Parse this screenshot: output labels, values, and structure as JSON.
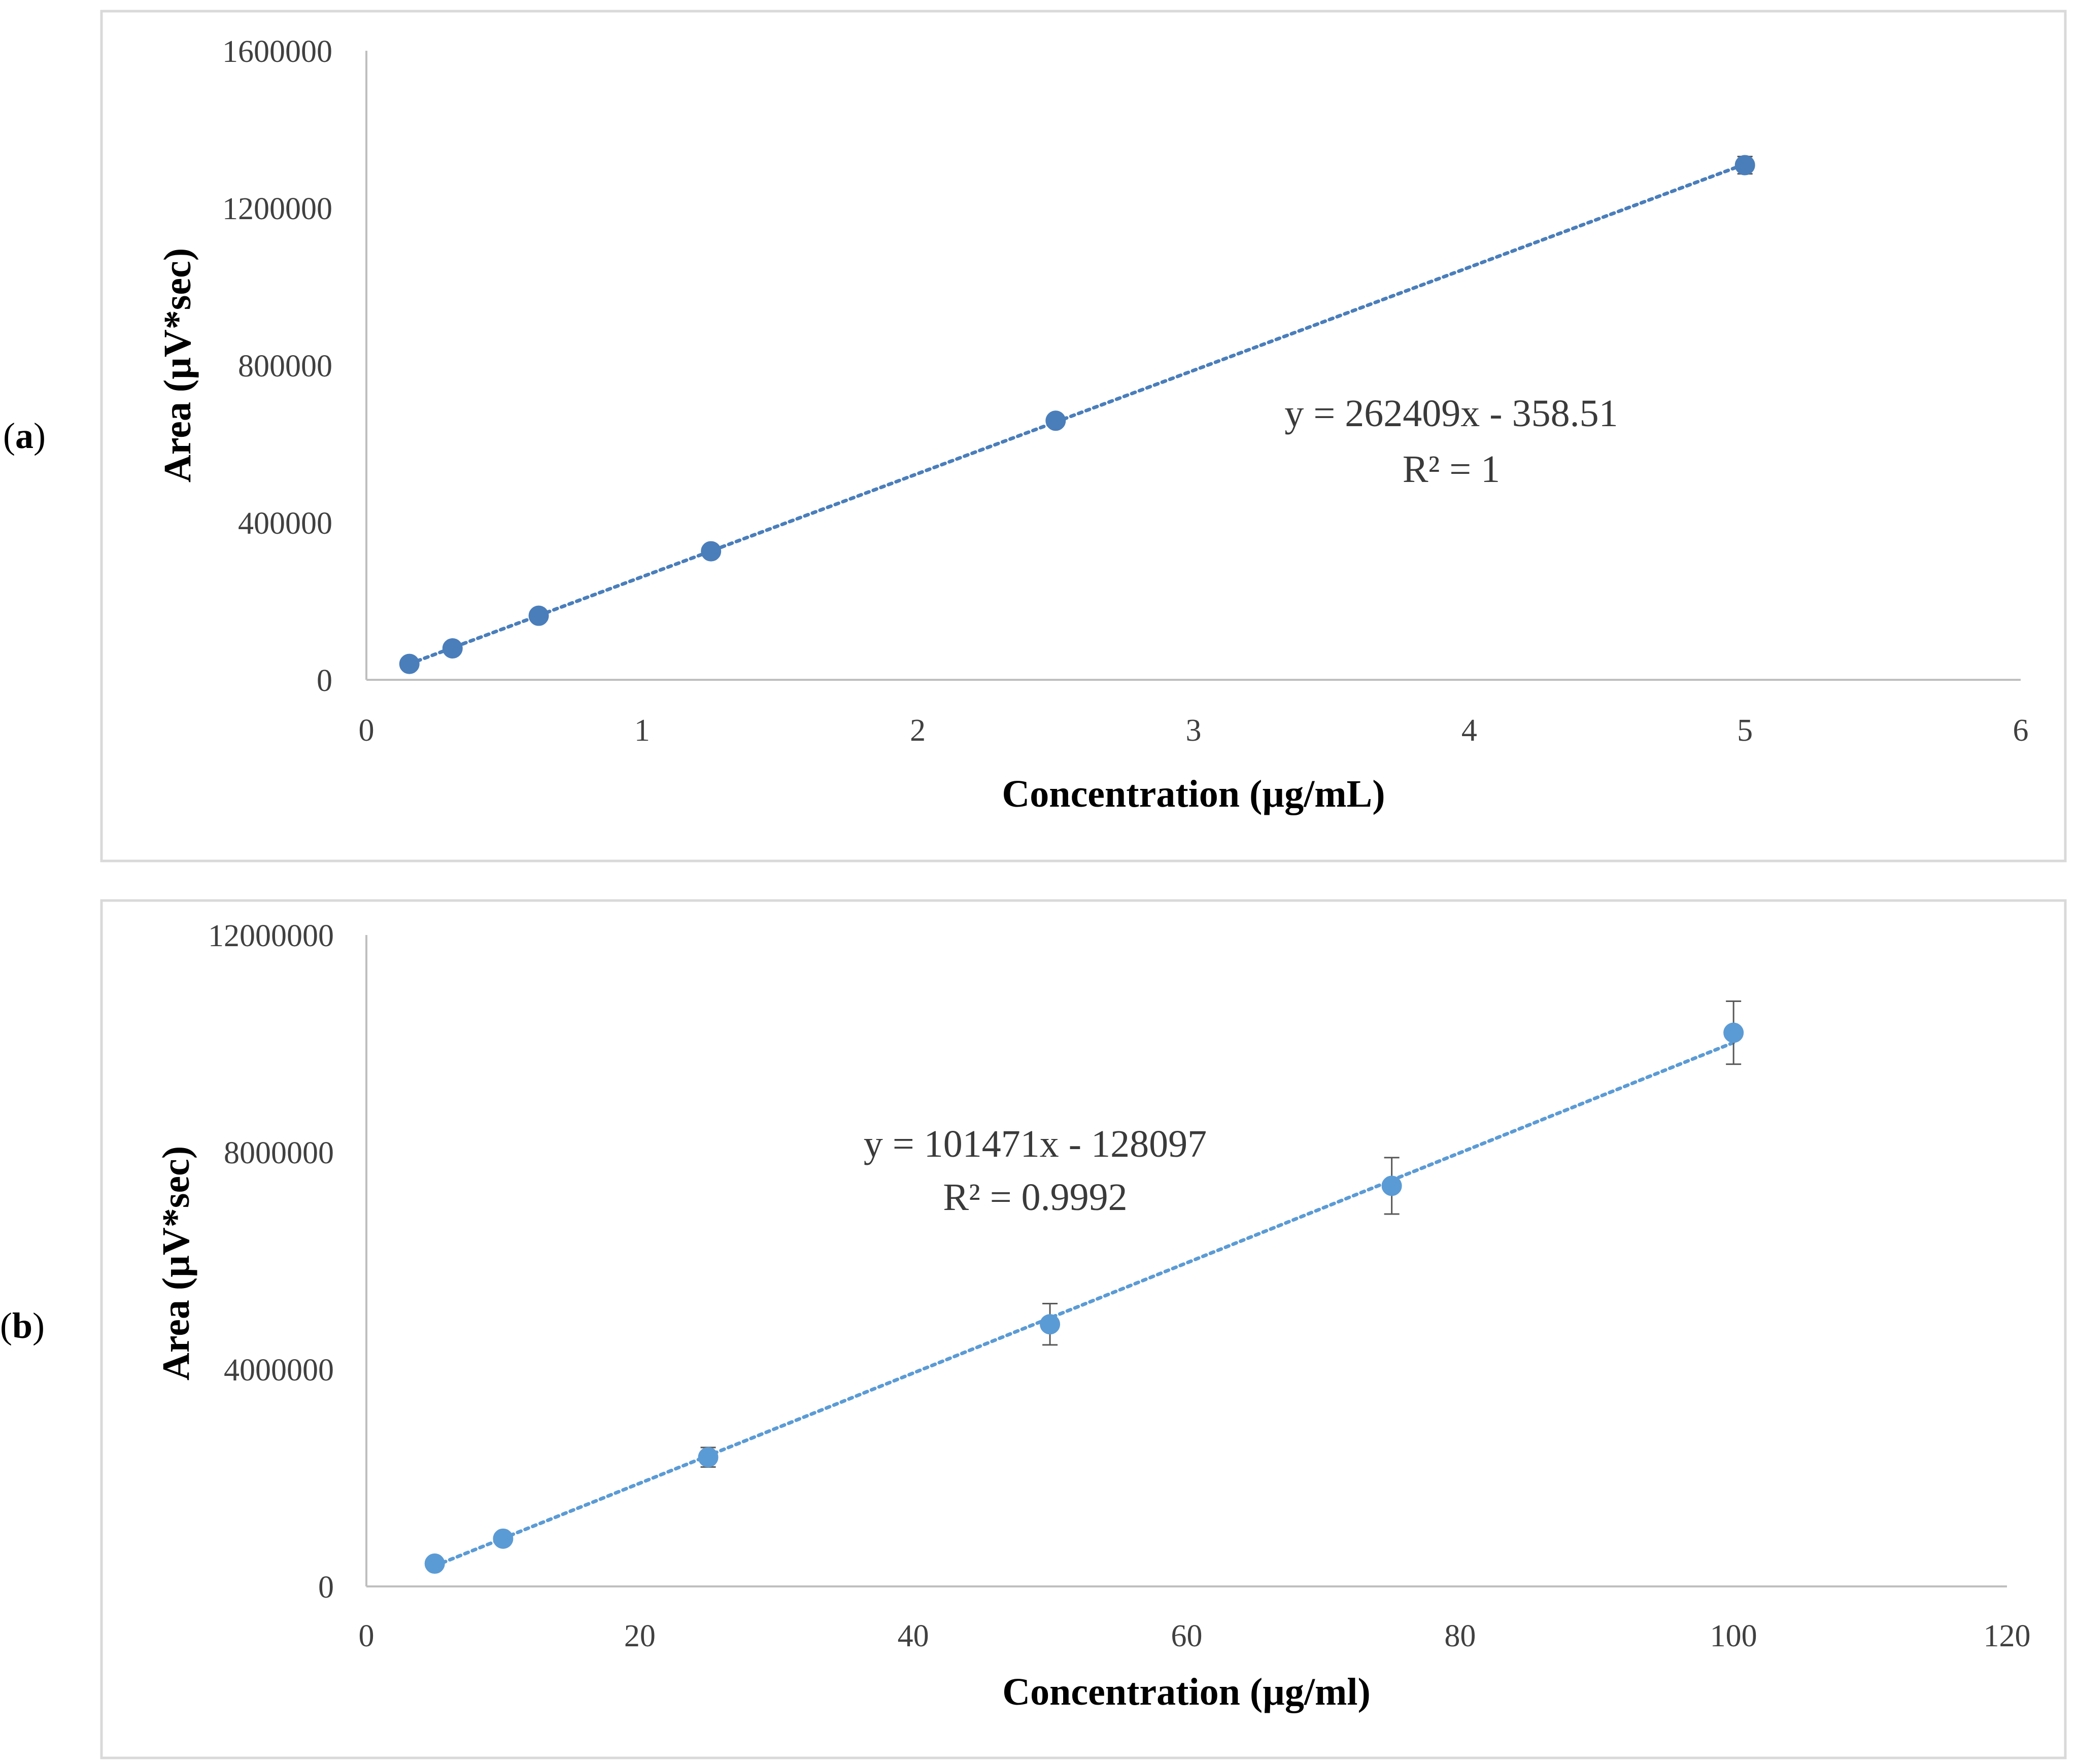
{
  "panels": [
    {
      "label_open": "(",
      "label_letter": "a",
      "label_close": ")"
    },
    {
      "label_open": "(",
      "label_letter": "b",
      "label_close": ")"
    }
  ],
  "chart_data": [
    {
      "type": "scatter",
      "panel": "a",
      "xlabel": "Concentration (µg/mL)",
      "ylabel": "Area (µV*sec)",
      "xlim": [
        0,
        6
      ],
      "ylim": [
        0,
        1600000
      ],
      "x_ticks": [
        0,
        1,
        2,
        3,
        4,
        5,
        6
      ],
      "y_ticks": [
        0,
        400000,
        800000,
        1200000,
        1600000
      ],
      "x_tick_labels": [
        "0",
        "1",
        "2",
        "3",
        "4",
        "5",
        "6"
      ],
      "y_tick_labels": [
        "0",
        "400000",
        "800000",
        "1200000",
        "1600000"
      ],
      "x": [
        0.156,
        0.3125,
        0.625,
        1.25,
        2.5,
        5
      ],
      "y": [
        40500,
        80000,
        163000,
        327000,
        659000,
        1309000
      ],
      "error": [
        0,
        0,
        0,
        0,
        0,
        22000
      ],
      "trendline": {
        "type": "linear",
        "slope": 262409,
        "intercept": -358.51,
        "x_range": [
          0.156,
          5
        ],
        "style": "dotted"
      },
      "equation_text": "y = 262409x - 358.51",
      "r2_text": "R² = 1",
      "marker_color": "#4a7ebb",
      "line_color": "#4a7ebb",
      "grid": false
    },
    {
      "type": "scatter",
      "panel": "b",
      "xlabel": "Concentration (µg/ml)",
      "ylabel": "Area (µV*sec)",
      "xlim": [
        0,
        120
      ],
      "ylim": [
        0,
        12000000
      ],
      "x_ticks": [
        0,
        20,
        40,
        60,
        80,
        100,
        120
      ],
      "y_ticks": [
        0,
        4000000,
        8000000,
        12000000
      ],
      "x_tick_labels": [
        "0",
        "20",
        "40",
        "60",
        "80",
        "100",
        "120"
      ],
      "y_tick_labels": [
        "0",
        "4000000",
        "8000000",
        "12000000"
      ],
      "x": [
        5,
        10,
        25,
        50,
        75,
        100
      ],
      "y": [
        420000,
        880000,
        2380000,
        4830000,
        7380000,
        10200000
      ],
      "error": [
        0,
        0,
        180000,
        380000,
        520000,
        580000
      ],
      "trendline": {
        "type": "linear",
        "slope": 101471,
        "intercept": -128097,
        "x_range": [
          5,
          100
        ],
        "style": "dotted"
      },
      "equation_text": "y = 101471x - 128097",
      "r2_text": "R² = 0.9992",
      "marker_color": "#5b9bd5",
      "line_color": "#5b9bd5",
      "grid": false
    }
  ]
}
